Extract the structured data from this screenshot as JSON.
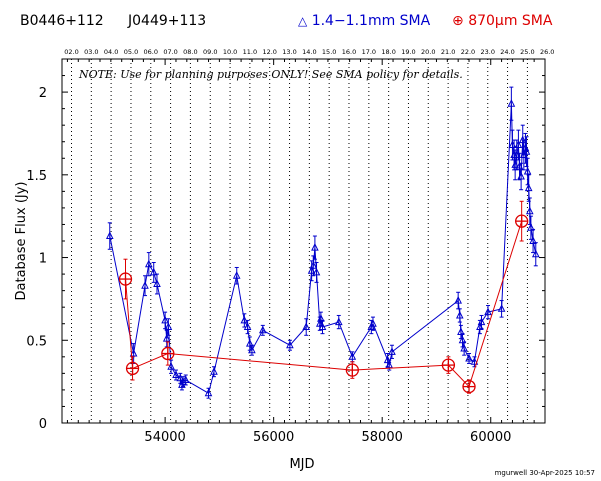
{
  "header": {
    "source_name": "B0446+112",
    "alt_name": "J0449+113",
    "legend_blue_symbol": "△",
    "legend_blue_text": "1.4−1.1mm SMA",
    "legend_red_symbol": "⊕",
    "legend_red_text": "870μm SMA"
  },
  "credit": "mgurwell 30-Apr-2025 10:57",
  "colors": {
    "blue": "#0000cc",
    "red": "#dd0000",
    "axis": "#000000"
  },
  "chart_data": {
    "type": "scatter",
    "xlabel": "MJD",
    "ylabel": "Database Flux (Jy)",
    "xlim": [
      52100,
      61000
    ],
    "ylim": [
      0,
      2.2
    ],
    "x_ticks": [
      54000,
      56000,
      58000,
      60000
    ],
    "y_ticks": [
      0,
      0.5,
      1,
      1.5,
      2
    ],
    "note": "NOTE: Use for planning purposes ONLY!  See SMA policy for details.",
    "top_axis": {
      "label_values": [
        "02.0",
        "03.0",
        "04.0",
        "05.0",
        "06.0",
        "07.0",
        "08.0",
        "09.0",
        "10.0",
        "11.0",
        "12.0",
        "13.0",
        "14.0",
        "15.0",
        "16.0",
        "17.0",
        "18.0",
        "19.0",
        "20.0",
        "21.0",
        "22.0",
        "23.0",
        "24.0",
        "25.0",
        "26.0"
      ],
      "label_mjd": [
        52275,
        52640,
        53005,
        53371,
        53736,
        54101,
        54466,
        54832,
        55197,
        55562,
        55927,
        56293,
        56658,
        57023,
        57388,
        57754,
        58119,
        58484,
        58849,
        59215,
        59580,
        59945,
        60310,
        60676,
        61041
      ]
    },
    "series": [
      {
        "name": "1.4−1.1mm SMA",
        "color": "#0000cc",
        "marker": "triangle",
        "connected": true,
        "x": [
          52980,
          53420,
          53630,
          53700,
          53790,
          53850,
          54000,
          54030,
          54060,
          54110,
          54200,
          54280,
          54310,
          54330,
          54380,
          54800,
          54900,
          55320,
          55460,
          55520,
          55560,
          55600,
          55800,
          56300,
          56600,
          56700,
          56730,
          56760,
          56790,
          56850,
          56870,
          56900,
          57200,
          57450,
          57800,
          57830,
          58100,
          58130,
          58180,
          59400,
          59430,
          59450,
          59480,
          59510,
          59600,
          59700,
          59800,
          59830,
          59950,
          60200,
          60380,
          60400,
          60430,
          60450,
          60480,
          60510,
          60530,
          60560,
          60590,
          60610,
          60640,
          60660,
          60680,
          60700,
          60720,
          60740,
          60780,
          60830
        ],
        "y": [
          1.13,
          0.42,
          0.83,
          0.96,
          0.91,
          0.84,
          0.62,
          0.51,
          0.58,
          0.34,
          0.29,
          0.27,
          0.23,
          0.25,
          0.26,
          0.18,
          0.31,
          0.89,
          0.62,
          0.58,
          0.48,
          0.44,
          0.56,
          0.47,
          0.58,
          0.92,
          0.95,
          1.06,
          0.91,
          0.6,
          0.63,
          0.58,
          0.61,
          0.4,
          0.58,
          0.6,
          0.38,
          0.35,
          0.43,
          0.74,
          0.65,
          0.55,
          0.5,
          0.45,
          0.39,
          0.37,
          0.58,
          0.61,
          0.67,
          0.69,
          1.93,
          1.68,
          1.62,
          1.56,
          1.62,
          1.68,
          1.55,
          1.49,
          1.71,
          1.62,
          1.66,
          1.64,
          1.52,
          1.42,
          1.28,
          1.18,
          1.1,
          1.02
        ],
        "yerr": [
          0.08,
          0.06,
          0.06,
          0.07,
          0.06,
          0.06,
          0.05,
          0.05,
          0.05,
          0.04,
          0.03,
          0.03,
          0.03,
          0.03,
          0.03,
          0.03,
          0.03,
          0.05,
          0.04,
          0.04,
          0.04,
          0.03,
          0.03,
          0.03,
          0.05,
          0.06,
          0.06,
          0.07,
          0.06,
          0.04,
          0.04,
          0.04,
          0.04,
          0.03,
          0.04,
          0.04,
          0.04,
          0.03,
          0.04,
          0.05,
          0.04,
          0.04,
          0.04,
          0.04,
          0.03,
          0.03,
          0.04,
          0.04,
          0.04,
          0.05,
          0.1,
          0.09,
          0.09,
          0.09,
          0.09,
          0.09,
          0.08,
          0.08,
          0.09,
          0.09,
          0.09,
          0.09,
          0.08,
          0.08,
          0.08,
          0.07,
          0.07,
          0.07
        ]
      },
      {
        "name": "870μm SMA",
        "color": "#dd0000",
        "marker": "circle-plus",
        "connected": true,
        "x": [
          53270,
          53400,
          54050,
          57450,
          59220,
          59600,
          60570
        ],
        "y": [
          0.87,
          0.33,
          0.42,
          0.32,
          0.35,
          0.22,
          1.22
        ],
        "yerr": [
          0.12,
          0.07,
          0.07,
          0.05,
          0.05,
          0.04,
          0.12
        ]
      }
    ]
  }
}
